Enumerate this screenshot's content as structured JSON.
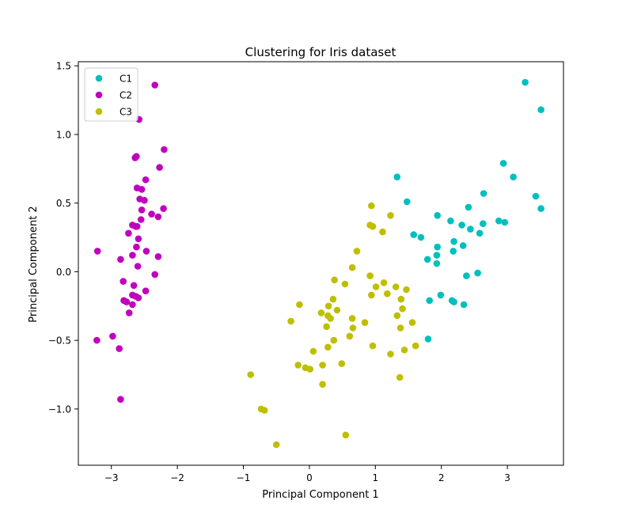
{
  "chart_data": {
    "type": "scatter",
    "title": "Clustering for Iris dataset",
    "xlabel": "Principal Component 1",
    "ylabel": "Principal Component 2",
    "xlim": [
      -3.5,
      3.85
    ],
    "ylim": [
      -1.41,
      1.53
    ],
    "xticks": [
      -3,
      -2,
      -1,
      0,
      1,
      2,
      3
    ],
    "xtick_labels": [
      "−3",
      "−2",
      "−1",
      "0",
      "1",
      "2",
      "3"
    ],
    "yticks": [
      -1.0,
      -0.5,
      0.0,
      0.5,
      1.0,
      1.5
    ],
    "ytick_labels": [
      "−1.0",
      "−0.5",
      "0.0",
      "0.5",
      "1.0",
      "1.5"
    ],
    "grid": false,
    "legend_position": "upper-left",
    "series": [
      {
        "name": "C1",
        "color": "#00bfbf",
        "points": [
          [
            1.33,
            0.69
          ],
          [
            1.48,
            0.51
          ],
          [
            1.94,
            0.41
          ],
          [
            2.14,
            0.37
          ],
          [
            2.41,
            0.47
          ],
          [
            2.64,
            0.57
          ],
          [
            3.27,
            1.38
          ],
          [
            3.51,
            1.18
          ],
          [
            2.94,
            0.79
          ],
          [
            3.09,
            0.69
          ],
          [
            3.43,
            0.55
          ],
          [
            3.51,
            0.46
          ],
          [
            1.58,
            0.27
          ],
          [
            1.69,
            0.25
          ],
          [
            1.94,
            0.18
          ],
          [
            1.79,
            0.09
          ],
          [
            1.93,
            0.12
          ],
          [
            1.93,
            0.06
          ],
          [
            2.18,
            0.15
          ],
          [
            2.19,
            0.22
          ],
          [
            2.31,
            0.34
          ],
          [
            2.44,
            0.31
          ],
          [
            2.58,
            0.28
          ],
          [
            2.63,
            0.35
          ],
          [
            2.87,
            0.37
          ],
          [
            2.96,
            0.36
          ],
          [
            2.33,
            0.19
          ],
          [
            2.38,
            -0.03
          ],
          [
            2.55,
            -0.01
          ],
          [
            1.82,
            -0.21
          ],
          [
            1.99,
            -0.17
          ],
          [
            2.16,
            -0.21
          ],
          [
            2.19,
            -0.22
          ],
          [
            2.34,
            -0.24
          ],
          [
            1.8,
            -0.49
          ]
        ]
      },
      {
        "name": "C2",
        "color": "#bf00bf",
        "points": [
          [
            -2.34,
            1.36
          ],
          [
            -2.58,
            1.11
          ],
          [
            -2.2,
            0.89
          ],
          [
            -2.62,
            0.84
          ],
          [
            -2.64,
            0.83
          ],
          [
            -2.27,
            0.76
          ],
          [
            -2.48,
            0.67
          ],
          [
            -2.61,
            0.61
          ],
          [
            -2.54,
            0.6
          ],
          [
            -2.57,
            0.53
          ],
          [
            -2.5,
            0.52
          ],
          [
            -2.54,
            0.45
          ],
          [
            -2.21,
            0.46
          ],
          [
            -2.39,
            0.42
          ],
          [
            -2.29,
            0.4
          ],
          [
            -2.55,
            0.38
          ],
          [
            -2.68,
            0.34
          ],
          [
            -2.63,
            0.33
          ],
          [
            -2.61,
            0.33
          ],
          [
            -2.74,
            0.28
          ],
          [
            -2.59,
            0.24
          ],
          [
            -2.62,
            0.18
          ],
          [
            -3.21,
            0.15
          ],
          [
            -2.47,
            0.15
          ],
          [
            -2.68,
            0.12
          ],
          [
            -2.29,
            0.11
          ],
          [
            -2.86,
            0.09
          ],
          [
            -2.6,
            0.04
          ],
          [
            -2.34,
            -0.02
          ],
          [
            -2.82,
            -0.07
          ],
          [
            -2.66,
            -0.1
          ],
          [
            -2.48,
            -0.14
          ],
          [
            -2.68,
            -0.17
          ],
          [
            -2.63,
            -0.18
          ],
          [
            -2.59,
            -0.19
          ],
          [
            -2.81,
            -0.21
          ],
          [
            -2.77,
            -0.22
          ],
          [
            -2.68,
            -0.24
          ],
          [
            -2.73,
            -0.3
          ],
          [
            -2.98,
            -0.47
          ],
          [
            -3.22,
            -0.5
          ],
          [
            -2.88,
            -0.56
          ],
          [
            -2.86,
            -0.93
          ]
        ]
      },
      {
        "name": "C3",
        "color": "#bfbf00",
        "points": [
          [
            0.94,
            0.48
          ],
          [
            1.23,
            0.41
          ],
          [
            0.92,
            0.34
          ],
          [
            0.96,
            0.33
          ],
          [
            1.11,
            0.29
          ],
          [
            0.72,
            0.15
          ],
          [
            0.65,
            0.03
          ],
          [
            0.92,
            -0.03
          ],
          [
            0.38,
            -0.06
          ],
          [
            0.54,
            -0.09
          ],
          [
            1.13,
            -0.08
          ],
          [
            1.01,
            -0.11
          ],
          [
            1.31,
            -0.11
          ],
          [
            1.47,
            -0.13
          ],
          [
            1.18,
            -0.16
          ],
          [
            0.94,
            -0.17
          ],
          [
            0.36,
            -0.2
          ],
          [
            1.39,
            -0.2
          ],
          [
            -0.15,
            -0.24
          ],
          [
            0.29,
            -0.25
          ],
          [
            1.41,
            -0.27
          ],
          [
            0.42,
            -0.28
          ],
          [
            0.18,
            -0.3
          ],
          [
            0.28,
            -0.32
          ],
          [
            1.33,
            -0.32
          ],
          [
            0.32,
            -0.34
          ],
          [
            0.65,
            -0.34
          ],
          [
            -0.28,
            -0.36
          ],
          [
            0.84,
            -0.37
          ],
          [
            1.56,
            -0.37
          ],
          [
            0.26,
            -0.4
          ],
          [
            0.66,
            -0.41
          ],
          [
            1.38,
            -0.41
          ],
          [
            0.61,
            -0.47
          ],
          [
            0.37,
            -0.5
          ],
          [
            0.28,
            -0.55
          ],
          [
            0.96,
            -0.54
          ],
          [
            1.61,
            -0.54
          ],
          [
            1.44,
            -0.57
          ],
          [
            0.06,
            -0.58
          ],
          [
            1.23,
            -0.6
          ],
          [
            0.49,
            -0.67
          ],
          [
            -0.17,
            -0.68
          ],
          [
            0.2,
            -0.68
          ],
          [
            -0.06,
            -0.7
          ],
          [
            0.01,
            -0.71
          ],
          [
            1.37,
            -0.77
          ],
          [
            -0.89,
            -0.75
          ],
          [
            0.2,
            -0.82
          ],
          [
            -0.73,
            -1.0
          ],
          [
            -0.68,
            -1.01
          ],
          [
            0.55,
            -1.19
          ],
          [
            -0.5,
            -1.26
          ]
        ]
      }
    ]
  }
}
